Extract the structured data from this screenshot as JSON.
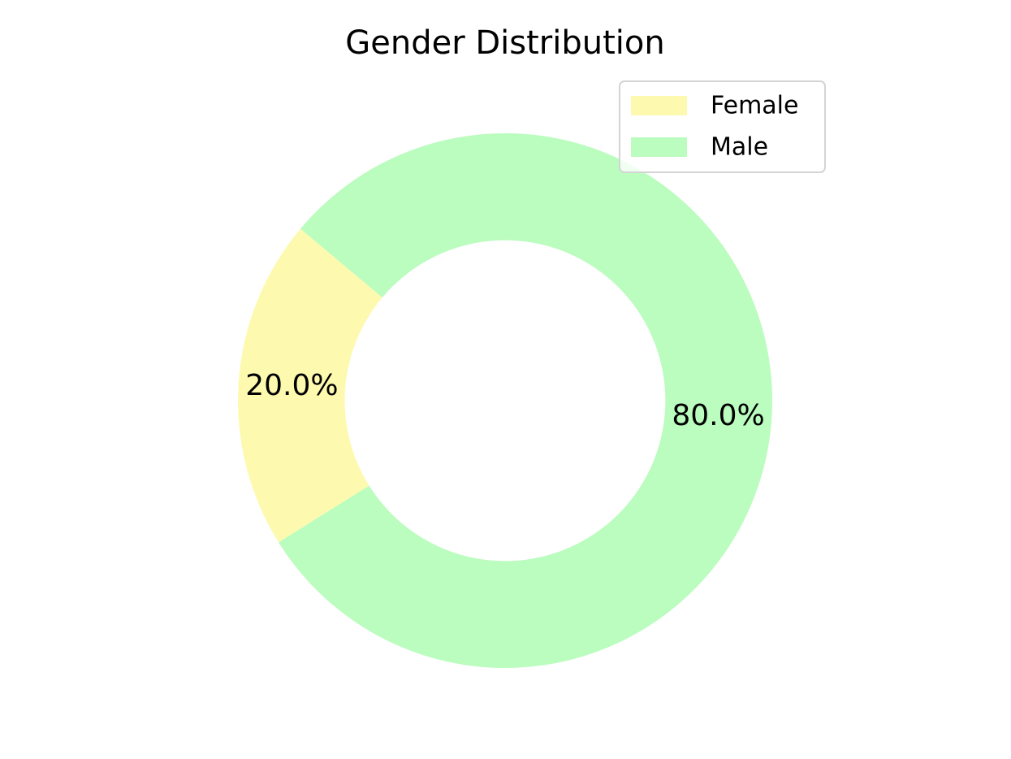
{
  "chart_data": {
    "type": "pie",
    "variant": "donut",
    "title": "Gender Distribution",
    "categories": [
      "Female",
      "Male"
    ],
    "values": [
      20.0,
      80.0
    ],
    "labels": [
      "20.0%",
      "80.0%"
    ],
    "colors": [
      "#fdfab0",
      "#bbfcbf"
    ],
    "start_angle_deg": 140,
    "direction": "counterclockwise",
    "inner_radius_fraction": 0.6,
    "legend": {
      "position": "top-right",
      "entries": [
        "Female",
        "Male"
      ]
    }
  }
}
